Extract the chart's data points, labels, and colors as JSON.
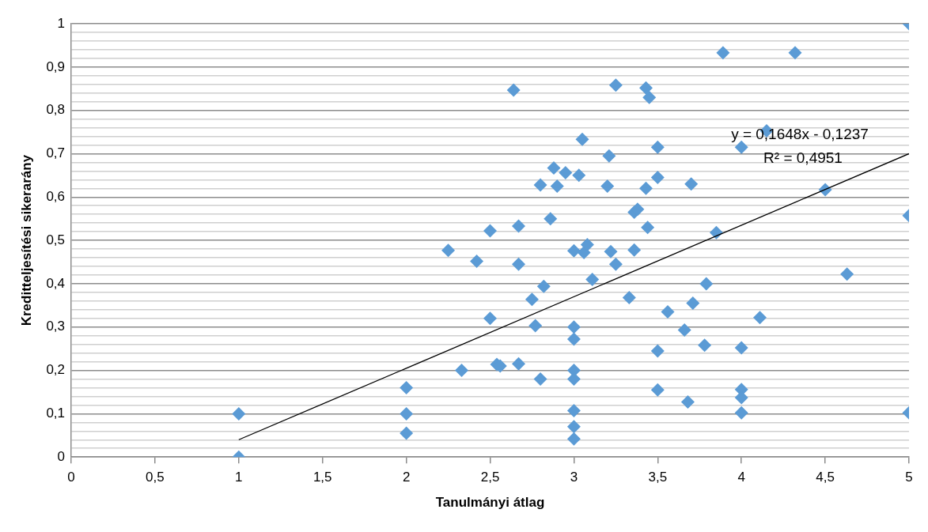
{
  "chart_data": {
    "type": "scatter",
    "xlabel": "Tanulmányi átlag",
    "ylabel": "Kreditteljesítési sikerarány",
    "xlim": [
      0,
      5
    ],
    "ylim": [
      0,
      1
    ],
    "xticks": [
      0,
      {
        "value": 0.5,
        "label": "0,5"
      },
      1,
      {
        "value": 1.5,
        "label": "1,5"
      },
      2,
      {
        "value": 2.5,
        "label": "2,5"
      },
      3,
      {
        "value": 3.5,
        "label": "3,5"
      },
      4,
      {
        "value": 4.5,
        "label": "4,5"
      },
      5
    ],
    "yticks": [
      0,
      {
        "value": 0.02,
        "label": null
      },
      {
        "value": 0.04,
        "label": null
      },
      {
        "value": 0.06,
        "label": null
      },
      {
        "value": 0.08,
        "label": null
      },
      {
        "value": 0.1,
        "label": "0,1"
      },
      {
        "value": 0.12,
        "label": null
      },
      {
        "value": 0.14,
        "label": null
      },
      {
        "value": 0.16,
        "label": null
      },
      {
        "value": 0.18,
        "label": null
      },
      {
        "value": 0.2,
        "label": "0,2"
      },
      {
        "value": 0.22,
        "label": null
      },
      {
        "value": 0.24,
        "label": null
      },
      {
        "value": 0.26,
        "label": null
      },
      {
        "value": 0.28,
        "label": null
      },
      {
        "value": 0.3,
        "label": "0,3"
      },
      {
        "value": 0.32,
        "label": null
      },
      {
        "value": 0.34,
        "label": null
      },
      {
        "value": 0.36,
        "label": null
      },
      {
        "value": 0.38,
        "label": null
      },
      {
        "value": 0.4,
        "label": "0,4"
      },
      {
        "value": 0.42,
        "label": null
      },
      {
        "value": 0.44,
        "label": null
      },
      {
        "value": 0.46,
        "label": null
      },
      {
        "value": 0.48,
        "label": null
      },
      {
        "value": 0.5,
        "label": "0,5"
      },
      {
        "value": 0.52,
        "label": null
      },
      {
        "value": 0.54,
        "label": null
      },
      {
        "value": 0.56,
        "label": null
      },
      {
        "value": 0.58,
        "label": null
      },
      {
        "value": 0.6,
        "label": "0,6"
      },
      {
        "value": 0.62,
        "label": null
      },
      {
        "value": 0.64,
        "label": null
      },
      {
        "value": 0.66,
        "label": null
      },
      {
        "value": 0.68,
        "label": null
      },
      {
        "value": 0.7,
        "label": "0,7"
      },
      {
        "value": 0.72,
        "label": null
      },
      {
        "value": 0.74,
        "label": null
      },
      {
        "value": 0.76,
        "label": null
      },
      {
        "value": 0.78,
        "label": null
      },
      {
        "value": 0.8,
        "label": "0,8"
      },
      {
        "value": 0.82,
        "label": null
      },
      {
        "value": 0.84,
        "label": null
      },
      {
        "value": 0.86,
        "label": null
      },
      {
        "value": 0.88,
        "label": null
      },
      {
        "value": 0.9,
        "label": "0,9"
      },
      {
        "value": 0.92,
        "label": null
      },
      {
        "value": 0.94,
        "label": null
      },
      {
        "value": 0.96,
        "label": null
      },
      {
        "value": 0.98,
        "label": null
      },
      1
    ],
    "grid": "y",
    "marker": "diamond",
    "legend": false,
    "series": [
      {
        "type": "scatter",
        "color": "#5b9bd5",
        "x": [
          1,
          1,
          2,
          2,
          2,
          2.33,
          2.25,
          2.42,
          2.5,
          2.5,
          2.54,
          2.56,
          2.67,
          2.67,
          2.67,
          2.64,
          2.75,
          2.77,
          2.8,
          2.8,
          2.82,
          2.86,
          2.88,
          2.9,
          2.95,
          3,
          3,
          3,
          3,
          3,
          3,
          3,
          3,
          3.03,
          3.05,
          3.06,
          3.08,
          3.11,
          3.2,
          3.21,
          3.22,
          3.25,
          3.25,
          3.33,
          3.36,
          3.38,
          3.36,
          3.43,
          3.45,
          3.43,
          3.44,
          3.5,
          3.5,
          3.5,
          3.5,
          3.56,
          3.66,
          3.68,
          3.7,
          3.71,
          3.78,
          3.79,
          3.85,
          3.89,
          4,
          4.15,
          4,
          4,
          4,
          4,
          4.11,
          4.32,
          4.5,
          4.63,
          5,
          5,
          5
        ],
        "values": [
          0,
          0.1,
          0.16,
          0.1,
          0.055,
          0.2,
          0.477,
          0.452,
          0.522,
          0.32,
          0.214,
          0.21,
          0.215,
          0.533,
          0.445,
          0.847,
          0.364,
          0.303,
          0.18,
          0.628,
          0.394,
          0.55,
          0.667,
          0.625,
          0.656,
          0.476,
          0.3,
          0.272,
          0.2,
          0.18,
          0.107,
          0.07,
          0.042,
          0.65,
          0.733,
          0.472,
          0.49,
          0.41,
          0.625,
          0.695,
          0.474,
          0.445,
          0.858,
          0.368,
          0.565,
          0.572,
          0.478,
          0.852,
          0.83,
          0.62,
          0.53,
          0.715,
          0.645,
          0.245,
          0.155,
          0.335,
          0.293,
          0.127,
          0.63,
          0.355,
          0.258,
          0.4,
          0.518,
          0.933,
          0.715,
          0.753,
          0.252,
          0.156,
          0.137,
          0.102,
          0.322,
          0.933,
          0.617,
          0.422,
          1,
          0.557,
          0.102
        ]
      },
      {
        "type": "line",
        "color": "#000000",
        "x": [
          1,
          5
        ],
        "values": [
          0.04,
          0.7
        ],
        "marker": "none",
        "line_style": "solid"
      }
    ],
    "annotations": [
      "y = 0,1648x - 0,1237",
      "R² = 0,4951"
    ]
  }
}
